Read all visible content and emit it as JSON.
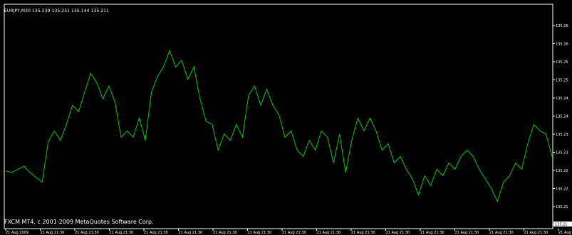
{
  "header": {
    "symbol_text": "EURJPY,M30",
    "ohlc_text": "135.239 135.251 135.144 135.211"
  },
  "footer": {
    "copyright": "FXCM MT4, c 2001-2009 MetaQuotes Software Corp."
  },
  "colors": {
    "background": "#000000",
    "line": "#00c800",
    "border": "#ffffff",
    "text": "#ffffff"
  },
  "chart_data": {
    "type": "line",
    "title": "",
    "xlabel": "",
    "ylabel": "",
    "x_tick_labels": [
      "21 Aug 2009",
      "21 Aug 21:30",
      "21 Aug 21:30",
      "21 Aug 21:30",
      "21 Aug 21:30",
      "21 Aug 21:30",
      "21 Aug 21:30",
      "21 Aug 21:30",
      "21 Aug 21:30",
      "21 Aug 21:30",
      "21 Aug 21:30",
      "21 Aug 21:30",
      "21 Aug 21:30",
      "21 Aug 21:30",
      "21 Aug 21:30",
      "21 Aug 21:30",
      "21 Aug 21:30"
    ],
    "y_tick_labels": [
      "135.26",
      "135.26",
      "135.25",
      "135.25",
      "135.24",
      "135.24",
      "135.23",
      "135.23",
      "135.22",
      "135.22",
      "135.21",
      "135.21"
    ],
    "current_price_label": "135.21",
    "ylim": [
      135.2,
      135.27
    ],
    "grid": false,
    "series": [
      {
        "values": [
          135.218,
          135.2175,
          135.2185,
          135.2195,
          135.2175,
          135.216,
          135.2145,
          135.227,
          135.2305,
          135.2275,
          135.2325,
          135.2385,
          135.2365,
          135.2425,
          135.2485,
          135.2455,
          135.2405,
          135.2445,
          135.2395,
          135.2285,
          135.2305,
          135.2285,
          135.2345,
          135.2275,
          135.2425,
          135.2475,
          135.2505,
          135.2555,
          135.2505,
          135.2525,
          135.2465,
          135.2505,
          135.2405,
          135.2335,
          135.2325,
          135.2245,
          135.2295,
          135.2275,
          135.2325,
          135.2285,
          135.2415,
          135.2445,
          135.2385,
          135.2435,
          135.2385,
          135.2355,
          135.2285,
          135.2305,
          135.2245,
          135.2225,
          135.2275,
          135.2245,
          135.2305,
          135.2285,
          135.2205,
          135.2295,
          135.2175,
          135.2275,
          135.2345,
          135.2305,
          135.2345,
          135.2305,
          135.2245,
          135.2265,
          135.2205,
          135.2225,
          135.2185,
          135.2155,
          135.2105,
          135.2165,
          135.2135,
          135.2185,
          135.2165,
          135.2205,
          135.2185,
          135.2225,
          135.2245,
          135.2225,
          135.2185,
          135.2155,
          135.2125,
          135.2085,
          135.2145,
          135.2165,
          135.2205,
          135.2185,
          135.2265,
          135.2325,
          135.2305,
          135.2295,
          135.2225
        ]
      }
    ]
  }
}
